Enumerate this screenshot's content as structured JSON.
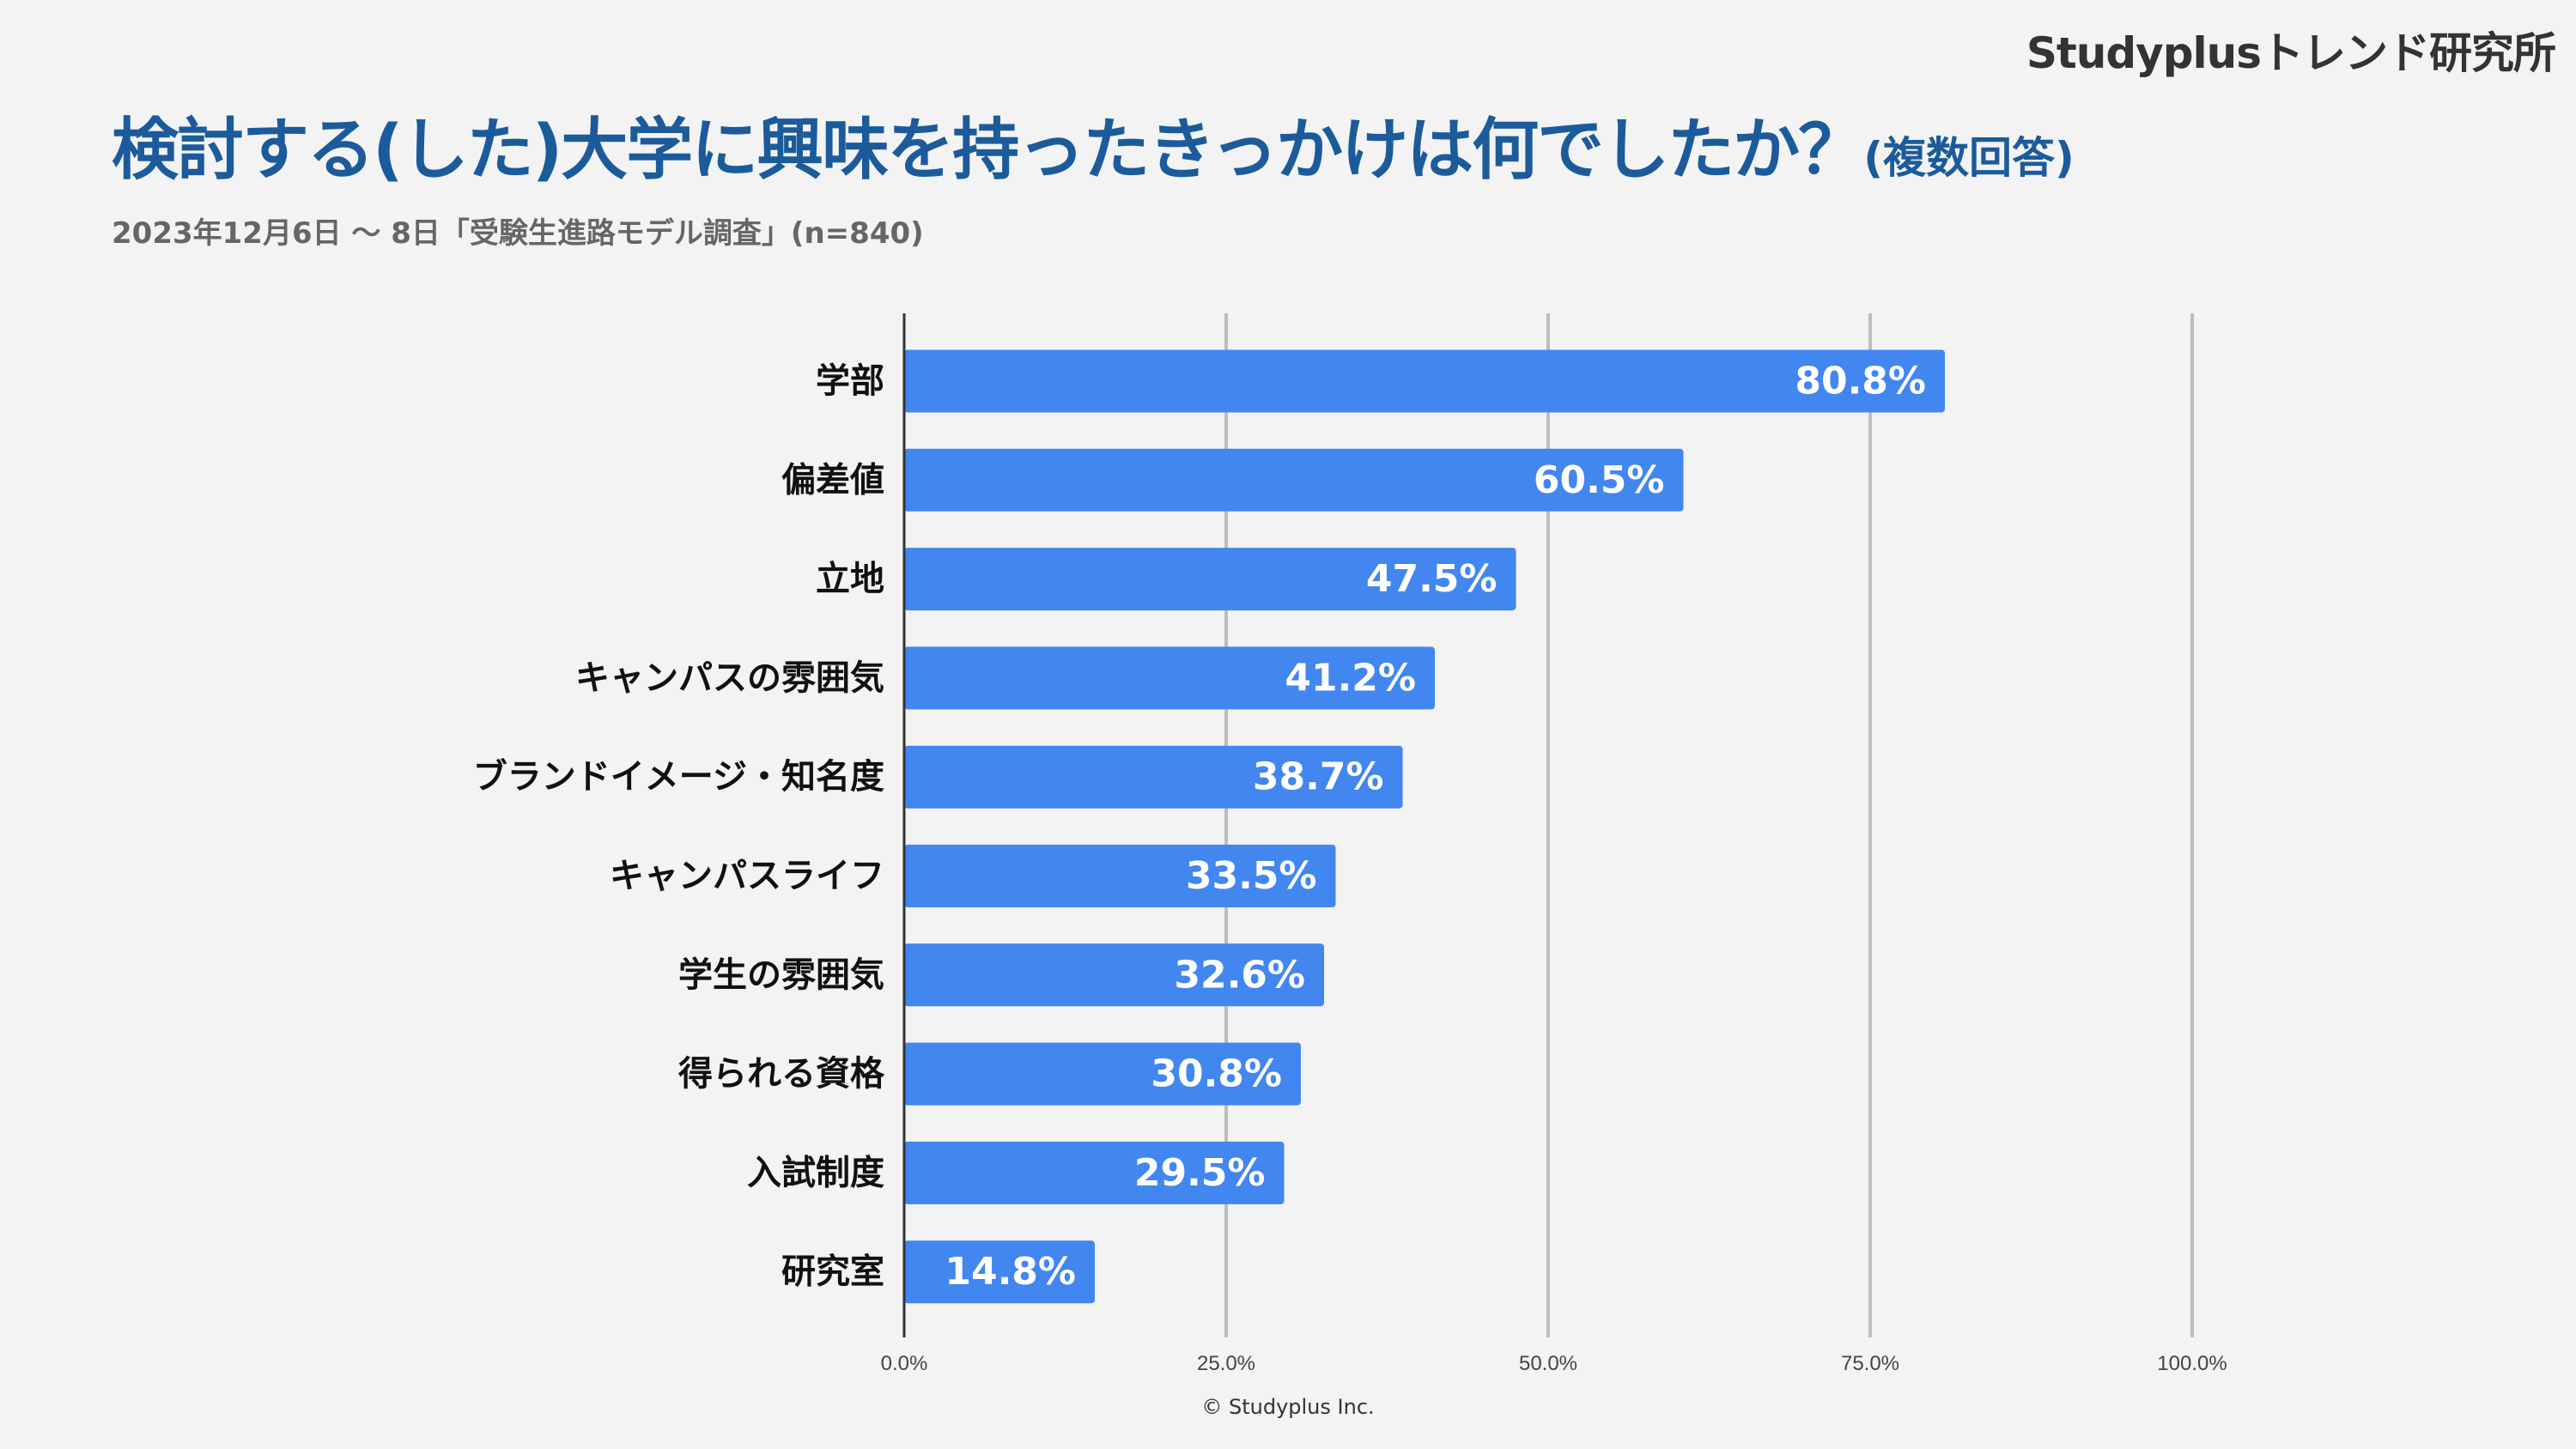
{
  "header": {
    "brand": "Studyplusトレンド研究所",
    "title": "検討する(した)大学に興味を持ったきっかけは何でしたか？",
    "title_note": "(複数回答)",
    "subtitle": "2023年12月6日 〜 8日「受験生進路モデル調査」(n=840)"
  },
  "footer": {
    "copyright": "© Studyplus Inc."
  },
  "colors": {
    "bar": "#4286f0",
    "title": "#1c5b9b",
    "grid": "#bdbdbd"
  },
  "chart_data": {
    "type": "bar",
    "orientation": "horizontal",
    "title": "検討する(した)大学に興味を持ったきっかけは何でしたか？(複数回答)",
    "categories": [
      "学部",
      "偏差値",
      "立地",
      "キャンパスの雰囲気",
      "ブランドイメージ・知名度",
      "キャンパスライフ",
      "学生の雰囲気",
      "得られる資格",
      "入試制度",
      "研究室"
    ],
    "values": [
      80.8,
      60.5,
      47.5,
      41.2,
      38.7,
      33.5,
      32.6,
      30.8,
      29.5,
      14.8
    ],
    "value_labels": [
      "80.8%",
      "60.5%",
      "47.5%",
      "41.2%",
      "38.7%",
      "33.5%",
      "32.6%",
      "30.8%",
      "29.5%",
      "14.8%"
    ],
    "xlim": [
      0,
      100
    ],
    "xticks": [
      0,
      25,
      50,
      75,
      100
    ],
    "xtick_labels": [
      "0.0%",
      "25.0%",
      "50.0%",
      "75.0%",
      "100.0%"
    ],
    "xlabel": "",
    "ylabel": "",
    "grid": true,
    "legend": "none"
  }
}
